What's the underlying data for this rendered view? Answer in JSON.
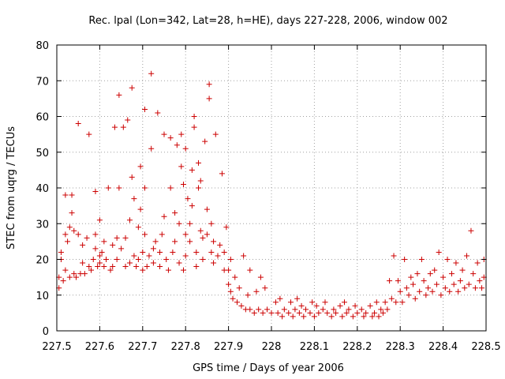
{
  "chart_data": {
    "type": "scatter",
    "title": "Rec. lpal (Lon=342, Lat=28, h=HE), days 227-228, 2006, window 002",
    "xlabel": "GPS time / Days of year 2006",
    "ylabel": "STEC from uqrg / TECUs",
    "xlim": [
      227.5,
      228.5
    ],
    "ylim": [
      0,
      80
    ],
    "x_ticks": [
      227.5,
      227.6,
      227.7,
      227.8,
      227.9,
      228.0,
      228.1,
      228.2,
      228.3,
      228.4,
      228.5
    ],
    "x_tick_labels": [
      "227.5",
      "227.6",
      "227.7",
      "227.8",
      "227.9",
      "228",
      "228.1",
      "228.2",
      "228.3",
      "228.4",
      "228.5"
    ],
    "y_ticks": [
      0,
      10,
      20,
      30,
      40,
      50,
      60,
      70,
      80
    ],
    "y_tick_labels": [
      "0",
      "10",
      "20",
      "30",
      "40",
      "50",
      "60",
      "70",
      "80"
    ],
    "grid": true,
    "marker": "+",
    "marker_color": "#cc0000",
    "series": [
      {
        "points": [
          [
            227.505,
            12
          ],
          [
            227.505,
            15
          ],
          [
            227.51,
            20
          ],
          [
            227.51,
            22
          ],
          [
            227.515,
            14
          ],
          [
            227.52,
            17
          ],
          [
            227.52,
            27
          ],
          [
            227.52,
            38
          ],
          [
            227.525,
            25
          ],
          [
            227.53,
            15
          ],
          [
            227.53,
            29
          ],
          [
            227.535,
            33
          ],
          [
            227.535,
            38
          ],
          [
            227.54,
            16
          ],
          [
            227.54,
            28
          ],
          [
            227.545,
            15
          ],
          [
            227.55,
            27
          ],
          [
            227.55,
            58
          ],
          [
            227.555,
            16
          ],
          [
            227.56,
            19
          ],
          [
            227.56,
            24
          ],
          [
            227.565,
            16
          ],
          [
            227.57,
            26
          ],
          [
            227.575,
            18
          ],
          [
            227.575,
            55
          ],
          [
            227.58,
            17
          ],
          [
            227.585,
            20
          ],
          [
            227.59,
            23
          ],
          [
            227.59,
            27
          ],
          [
            227.59,
            39
          ],
          [
            227.595,
            18
          ],
          [
            227.6,
            19
          ],
          [
            227.6,
            21
          ],
          [
            227.6,
            31
          ],
          [
            227.605,
            22
          ],
          [
            227.61,
            18
          ],
          [
            227.61,
            25
          ],
          [
            227.615,
            20
          ],
          [
            227.62,
            40
          ],
          [
            227.625,
            17
          ],
          [
            227.63,
            18
          ],
          [
            227.63,
            24
          ],
          [
            227.635,
            57
          ],
          [
            227.64,
            20
          ],
          [
            227.64,
            26
          ],
          [
            227.645,
            66
          ],
          [
            227.645,
            40
          ],
          [
            227.65,
            23
          ],
          [
            227.655,
            57
          ],
          [
            227.66,
            18
          ],
          [
            227.66,
            26
          ],
          [
            227.665,
            59
          ],
          [
            227.67,
            19
          ],
          [
            227.67,
            31
          ],
          [
            227.675,
            68
          ],
          [
            227.675,
            43
          ],
          [
            227.68,
            21
          ],
          [
            227.68,
            37
          ],
          [
            227.685,
            18
          ],
          [
            227.69,
            20
          ],
          [
            227.69,
            29
          ],
          [
            227.695,
            34
          ],
          [
            227.695,
            46
          ],
          [
            227.7,
            17
          ],
          [
            227.7,
            22
          ],
          [
            227.705,
            27
          ],
          [
            227.705,
            40
          ],
          [
            227.705,
            62
          ],
          [
            227.71,
            18
          ],
          [
            227.715,
            21
          ],
          [
            227.72,
            51
          ],
          [
            227.72,
            72
          ],
          [
            227.725,
            19
          ],
          [
            227.725,
            23
          ],
          [
            227.73,
            25
          ],
          [
            227.735,
            61
          ],
          [
            227.74,
            18
          ],
          [
            227.74,
            22
          ],
          [
            227.745,
            27
          ],
          [
            227.75,
            32
          ],
          [
            227.75,
            55
          ],
          [
            227.755,
            20
          ],
          [
            227.76,
            17
          ],
          [
            227.765,
            40
          ],
          [
            227.765,
            54
          ],
          [
            227.77,
            22
          ],
          [
            227.775,
            25
          ],
          [
            227.775,
            33
          ],
          [
            227.78,
            52
          ],
          [
            227.785,
            19
          ],
          [
            227.785,
            30
          ],
          [
            227.79,
            55
          ],
          [
            227.79,
            46
          ],
          [
            227.795,
            41
          ],
          [
            227.795,
            17
          ],
          [
            227.8,
            21
          ],
          [
            227.8,
            27
          ],
          [
            227.8,
            51
          ],
          [
            227.805,
            37
          ],
          [
            227.81,
            25
          ],
          [
            227.81,
            30
          ],
          [
            227.815,
            35
          ],
          [
            227.815,
            45
          ],
          [
            227.82,
            57
          ],
          [
            227.82,
            60
          ],
          [
            227.825,
            18
          ],
          [
            227.825,
            22
          ],
          [
            227.83,
            40
          ],
          [
            227.83,
            47
          ],
          [
            227.835,
            42
          ],
          [
            227.835,
            28
          ],
          [
            227.84,
            20
          ],
          [
            227.84,
            26
          ],
          [
            227.845,
            53
          ],
          [
            227.85,
            27
          ],
          [
            227.85,
            34
          ],
          [
            227.855,
            69
          ],
          [
            227.855,
            65
          ],
          [
            227.86,
            22
          ],
          [
            227.86,
            30
          ],
          [
            227.865,
            19
          ],
          [
            227.865,
            25
          ],
          [
            227.87,
            55
          ],
          [
            227.875,
            21
          ],
          [
            227.88,
            24
          ],
          [
            227.885,
            44
          ],
          [
            227.89,
            17
          ],
          [
            227.89,
            22
          ],
          [
            227.895,
            29
          ],
          [
            227.9,
            13
          ],
          [
            227.9,
            17
          ],
          [
            227.905,
            11
          ],
          [
            227.905,
            20
          ],
          [
            227.91,
            9
          ],
          [
            227.915,
            15
          ],
          [
            227.92,
            8
          ],
          [
            227.925,
            12
          ],
          [
            227.93,
            7
          ],
          [
            227.935,
            21
          ],
          [
            227.94,
            6
          ],
          [
            227.945,
            10
          ],
          [
            227.95,
            6
          ],
          [
            227.95,
            17
          ],
          [
            227.96,
            5
          ],
          [
            227.965,
            11
          ],
          [
            227.97,
            6
          ],
          [
            227.975,
            15
          ],
          [
            227.98,
            5
          ],
          [
            227.985,
            12
          ],
          [
            227.99,
            6
          ],
          [
            228.0,
            5
          ],
          [
            228.01,
            8
          ],
          [
            228.015,
            5
          ],
          [
            228.02,
            9
          ],
          [
            228.025,
            4
          ],
          [
            228.03,
            6
          ],
          [
            228.04,
            5
          ],
          [
            228.045,
            8
          ],
          [
            228.05,
            4
          ],
          [
            228.055,
            6
          ],
          [
            228.06,
            9
          ],
          [
            228.065,
            5
          ],
          [
            228.07,
            7
          ],
          [
            228.075,
            4
          ],
          [
            228.08,
            6
          ],
          [
            228.09,
            5
          ],
          [
            228.095,
            8
          ],
          [
            228.1,
            4
          ],
          [
            228.105,
            7
          ],
          [
            228.11,
            5
          ],
          [
            228.12,
            6
          ],
          [
            228.125,
            8
          ],
          [
            228.13,
            5
          ],
          [
            228.14,
            4
          ],
          [
            228.145,
            6
          ],
          [
            228.15,
            5
          ],
          [
            228.16,
            7
          ],
          [
            228.165,
            4
          ],
          [
            228.17,
            8
          ],
          [
            228.175,
            5
          ],
          [
            228.18,
            6
          ],
          [
            228.19,
            4
          ],
          [
            228.195,
            7
          ],
          [
            228.2,
            5
          ],
          [
            228.21,
            6
          ],
          [
            228.215,
            4
          ],
          [
            228.22,
            5
          ],
          [
            228.23,
            7
          ],
          [
            228.235,
            4
          ],
          [
            228.24,
            5
          ],
          [
            228.245,
            8
          ],
          [
            228.25,
            4
          ],
          [
            228.255,
            6
          ],
          [
            228.26,
            5
          ],
          [
            228.265,
            8
          ],
          [
            228.27,
            6
          ],
          [
            228.275,
            14
          ],
          [
            228.28,
            9
          ],
          [
            228.285,
            21
          ],
          [
            228.29,
            8
          ],
          [
            228.295,
            14
          ],
          [
            228.3,
            11
          ],
          [
            228.305,
            8
          ],
          [
            228.31,
            20
          ],
          [
            228.315,
            12
          ],
          [
            228.32,
            10
          ],
          [
            228.325,
            15
          ],
          [
            228.33,
            13
          ],
          [
            228.335,
            9
          ],
          [
            228.34,
            16
          ],
          [
            228.345,
            11
          ],
          [
            228.35,
            20
          ],
          [
            228.355,
            14
          ],
          [
            228.36,
            10
          ],
          [
            228.365,
            12
          ],
          [
            228.37,
            16
          ],
          [
            228.375,
            11
          ],
          [
            228.38,
            17
          ],
          [
            228.385,
            13
          ],
          [
            228.39,
            22
          ],
          [
            228.395,
            10
          ],
          [
            228.4,
            15
          ],
          [
            228.405,
            12
          ],
          [
            228.41,
            20
          ],
          [
            228.415,
            11
          ],
          [
            228.42,
            16
          ],
          [
            228.425,
            13
          ],
          [
            228.43,
            19
          ],
          [
            228.435,
            11
          ],
          [
            228.44,
            14
          ],
          [
            228.445,
            17
          ],
          [
            228.45,
            12
          ],
          [
            228.455,
            21
          ],
          [
            228.46,
            13
          ],
          [
            228.465,
            28
          ],
          [
            228.47,
            16
          ],
          [
            228.475,
            12
          ],
          [
            228.48,
            19
          ],
          [
            228.485,
            14
          ],
          [
            228.49,
            12
          ],
          [
            228.495,
            20
          ],
          [
            228.495,
            15
          ]
        ]
      }
    ]
  }
}
